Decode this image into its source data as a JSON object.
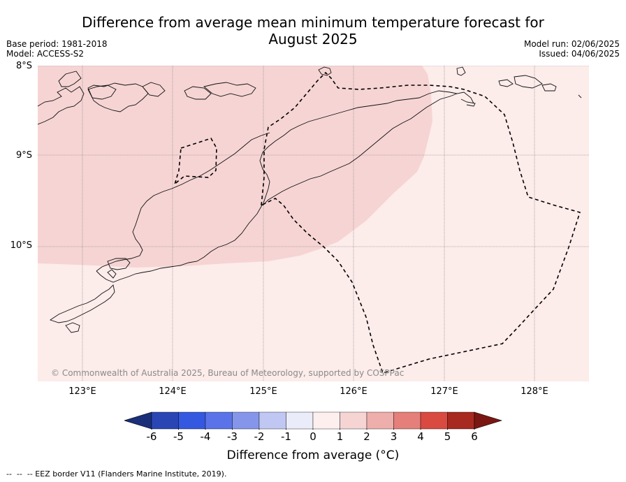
{
  "title_line1": "Difference from average mean minimum temperature forecast for",
  "title_line2": "August 2025",
  "base_period": "Base period: 1981-2018",
  "model": "Model: ACCESS-S2",
  "model_run": "Model run: 02/06/2025",
  "issued": "Issued: 04/06/2025",
  "lat_labels": [
    "8°S",
    "9°S",
    "10°S"
  ],
  "lon_labels": [
    "123°E",
    "124°E",
    "125°E",
    "126°E",
    "127°E",
    "128°E"
  ],
  "credit": "© Commonwealth of Australia 2025, Bureau of Meteorology, supported by COSPPac",
  "colorbar": {
    "label": "Difference from average (°C)",
    "ticks": [
      "-6",
      "-5",
      "-4",
      "-3",
      "-2",
      "-1",
      "0",
      "1",
      "2",
      "3",
      "4",
      "5",
      "6"
    ],
    "colors": [
      "#1a2f7a",
      "#2a46b5",
      "#3558e0",
      "#5b73e8",
      "#8596ea",
      "#bfc7f2",
      "#eaecf9",
      "#fcefee",
      "#f6d4d4",
      "#eeaeab",
      "#e47f79",
      "#d94a41",
      "#a8291f",
      "#7a1712"
    ]
  },
  "legend_footnote": "-- EEZ border V11 (Flanders Marine Institute, 2019).",
  "regions": [
    {
      "name": "1 to 2",
      "color": "#f6d4d4"
    },
    {
      "name": "0 to 1",
      "color": "#fcecea"
    }
  ]
}
